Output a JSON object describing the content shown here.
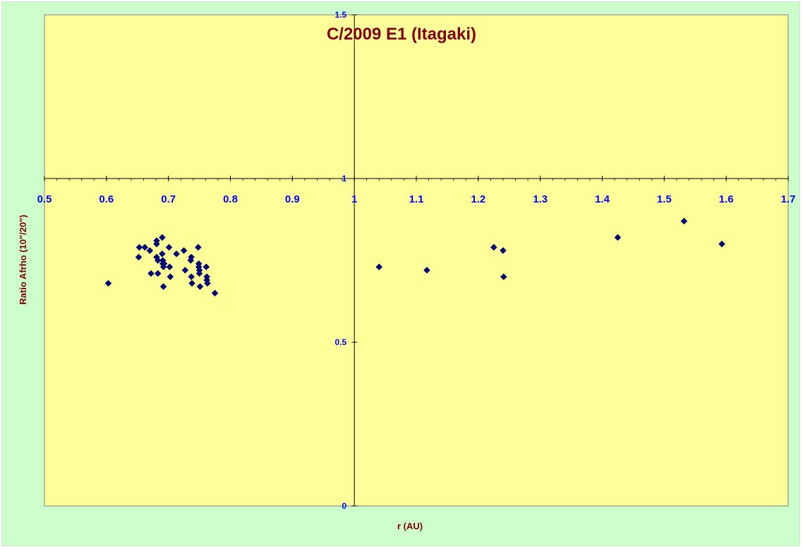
{
  "chart_data": {
    "type": "scatter",
    "title": "C/2009 E1 (Itagaki)",
    "xlabel": "r (AU)",
    "ylabel": "Ratio Afrho (10\"/20\")",
    "xlim": [
      0.5,
      1.7
    ],
    "ylim": [
      0,
      1.5
    ],
    "x_ticks": [
      "0.5",
      "0.6",
      "0.7",
      "0.8",
      "0.9",
      "1",
      "1.1",
      "1.2",
      "1.3",
      "1.4",
      "1.5",
      "1.6",
      "1.7"
    ],
    "y_ticks": [
      "0",
      "0.5",
      "1",
      "1.5"
    ],
    "grid": false,
    "legend": "none",
    "colors": {
      "background": "#ccffcc",
      "plot_area": "#ffff99",
      "marker": "#000080",
      "title": "#800000",
      "tick_labels": "#0000ff"
    },
    "series": [
      {
        "marker": "diamond",
        "x": [
          0.603,
          0.652,
          0.653,
          0.662,
          0.67,
          0.672,
          0.681,
          0.681,
          0.681,
          0.683,
          0.683,
          0.69,
          0.69,
          0.691,
          0.691,
          0.692,
          0.692,
          0.693,
          0.701,
          0.702,
          0.703,
          0.713,
          0.725,
          0.727,
          0.736,
          0.737,
          0.737,
          0.738,
          0.748,
          0.749,
          0.749,
          0.75,
          0.75,
          0.751,
          0.761,
          0.762,
          0.762,
          0.763,
          0.775,
          1.04,
          1.117,
          1.225,
          1.24,
          1.241,
          1.425,
          1.532,
          1.593
        ],
        "y": [
          0.68,
          0.76,
          0.79,
          0.79,
          0.78,
          0.71,
          0.8,
          0.81,
          0.76,
          0.75,
          0.71,
          0.82,
          0.77,
          0.75,
          0.74,
          0.73,
          0.67,
          0.74,
          0.79,
          0.73,
          0.7,
          0.77,
          0.78,
          0.72,
          0.75,
          0.76,
          0.7,
          0.68,
          0.79,
          0.74,
          0.73,
          0.72,
          0.71,
          0.67,
          0.73,
          0.7,
          0.69,
          0.68,
          0.65,
          0.73,
          0.72,
          0.79,
          0.78,
          0.7,
          0.82,
          0.87,
          0.8
        ]
      }
    ]
  }
}
